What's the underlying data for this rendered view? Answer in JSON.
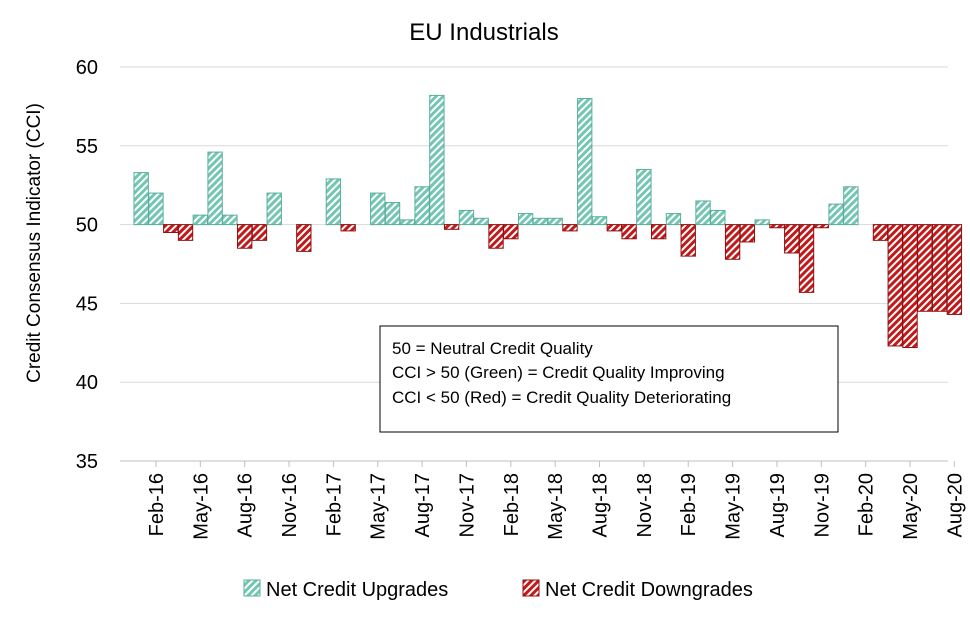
{
  "chart_data": {
    "type": "bar",
    "title": "EU Industrials",
    "xlabel": "",
    "ylabel": "Credit Consensus Indicator (CCI)",
    "ylim": [
      35,
      60
    ],
    "yticks": [
      "35",
      "40",
      "45",
      "50",
      "55",
      "60"
    ],
    "baseline": 50,
    "grid": true,
    "x_tick_labels": [
      "Feb-16",
      "May-16",
      "Aug-16",
      "Nov-16",
      "Feb-17",
      "May-17",
      "Aug-17",
      "Nov-17",
      "Feb-18",
      "May-18",
      "Aug-18",
      "Nov-18",
      "Feb-19",
      "May-19",
      "Aug-19",
      "Nov-19",
      "Feb-20",
      "May-20",
      "Aug-20"
    ],
    "categories": [
      "Jan-16",
      "Feb-16",
      "Mar-16",
      "Apr-16",
      "May-16",
      "Jun-16",
      "Jul-16",
      "Aug-16",
      "Sep-16",
      "Oct-16",
      "Nov-16",
      "Dec-16",
      "Jan-17",
      "Feb-17",
      "Mar-17",
      "Apr-17",
      "May-17",
      "Jun-17",
      "Jul-17",
      "Aug-17",
      "Sep-17",
      "Oct-17",
      "Nov-17",
      "Dec-17",
      "Jan-18",
      "Feb-18",
      "Mar-18",
      "Apr-18",
      "May-18",
      "Jun-18",
      "Jul-18",
      "Aug-18",
      "Sep-18",
      "Oct-18",
      "Nov-18",
      "Dec-18",
      "Jan-19",
      "Feb-19",
      "Mar-19",
      "Apr-19",
      "May-19",
      "Jun-19",
      "Jul-19",
      "Aug-19",
      "Sep-19",
      "Oct-19",
      "Nov-19",
      "Dec-19",
      "Jan-20",
      "Feb-20",
      "Mar-20",
      "Apr-20",
      "May-20",
      "Jun-20",
      "Jul-20",
      "Aug-20"
    ],
    "values": [
      53.3,
      52.0,
      49.5,
      49.0,
      50.6,
      54.6,
      50.6,
      48.5,
      49.0,
      52.0,
      50.0,
      48.3,
      50.0,
      52.9,
      49.6,
      50.0,
      52.0,
      51.4,
      50.3,
      52.4,
      58.2,
      49.7,
      50.9,
      50.4,
      48.5,
      49.1,
      50.7,
      50.4,
      50.4,
      49.6,
      58.0,
      50.5,
      49.6,
      49.1,
      53.5,
      49.1,
      50.7,
      48.0,
      51.5,
      50.9,
      47.8,
      48.9,
      50.3,
      49.8,
      48.2,
      45.7,
      49.8,
      51.3,
      52.4,
      50.0,
      49.0,
      42.3,
      42.2,
      44.5,
      44.5,
      44.3
    ],
    "series": [
      {
        "name": "Net Credit Upgrades",
        "condition": "value > 50"
      },
      {
        "name": "Net Credit Downgrades",
        "condition": "value < 50"
      }
    ],
    "legend_position": "bottom",
    "annotation": {
      "lines": [
        "50 = Neutral Credit Quality",
        "CCI > 50 (Green) = Credit Quality Improving",
        "CCI < 50 (Red) = Credit Quality Deteriorating"
      ]
    },
    "colors": {
      "up_fill": "#74c6b4",
      "up_stroke": "#5aae9c",
      "down_fill": "#c21a1a",
      "down_stroke": "#8f1010",
      "grid": "#d9d9d9",
      "axis": "#bfbfbf"
    }
  }
}
